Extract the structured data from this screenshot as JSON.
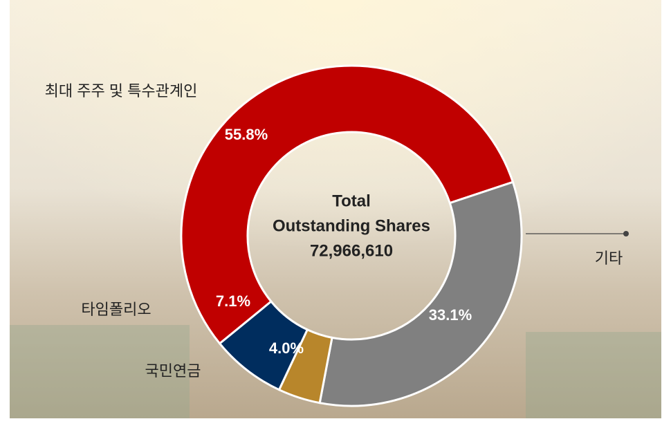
{
  "chart_data": {
    "type": "donut",
    "categories": [
      "최대 주주 및 특수관계인",
      "기타",
      "국민연금",
      "타임폴리오"
    ],
    "values": [
      55.8,
      33.1,
      4.0,
      7.1
    ],
    "value_labels": [
      "55.8%",
      "33.1%",
      "4.0%",
      "7.1%"
    ],
    "colors": [
      "#c00000",
      "#808080",
      "#b8862b",
      "#002d5e"
    ],
    "center_text": [
      "Total",
      "Outstanding Shares",
      "72,966,610"
    ]
  }
}
